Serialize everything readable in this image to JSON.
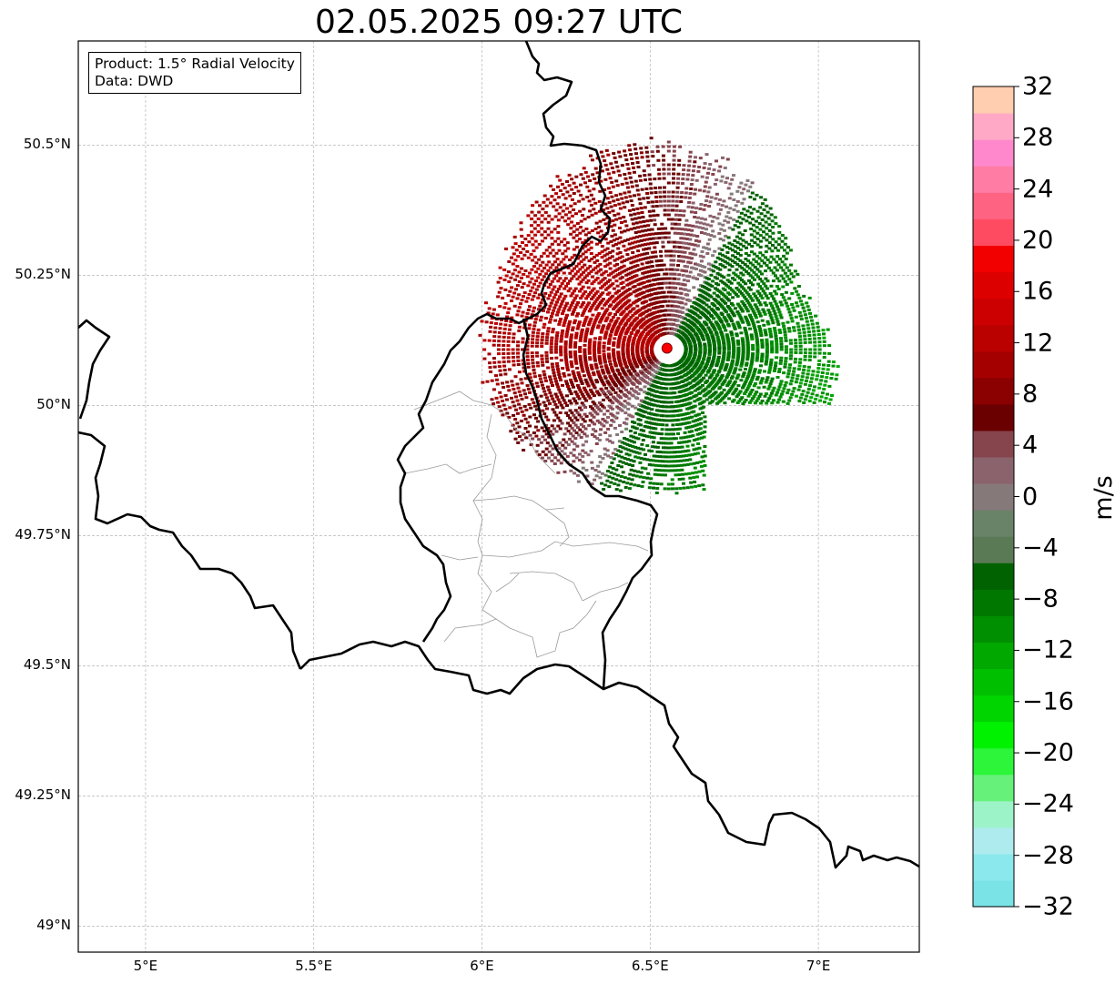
{
  "title": "02.05.2025 09:27 UTC",
  "infobox": {
    "product": "Product: 1.5° Radial Velocity",
    "source": "Data: DWD"
  },
  "map_extent": {
    "lon": [
      4.8,
      7.3
    ],
    "lat": [
      48.95,
      50.7
    ]
  },
  "radar_site": {
    "lon": 6.55,
    "lat": 50.11,
    "color": "#ff0000"
  },
  "lat_ticks": [
    {
      "value": 50.5,
      "label": "50.5°N"
    },
    {
      "value": 50.25,
      "label": "50.25°N"
    },
    {
      "value": 50.0,
      "label": "50°N"
    },
    {
      "value": 49.75,
      "label": "49.75°N"
    },
    {
      "value": 49.5,
      "label": "49.5°N"
    },
    {
      "value": 49.25,
      "label": "49.25°N"
    },
    {
      "value": 49.0,
      "label": "49°N"
    }
  ],
  "lon_ticks": [
    {
      "value": 5.0,
      "label": "5°E"
    },
    {
      "value": 5.5,
      "label": "5.5°E"
    },
    {
      "value": 6.0,
      "label": "6°E"
    },
    {
      "value": 6.5,
      "label": "6.5°E"
    },
    {
      "value": 7.0,
      "label": "7°E"
    }
  ],
  "colorbar": {
    "unit": "m/s",
    "range": [
      -32,
      32
    ],
    "ticks": [
      "32",
      "28",
      "24",
      "20",
      "16",
      "12",
      "8",
      "4",
      "0",
      "−4",
      "−8",
      "−12",
      "−16",
      "−20",
      "−24",
      "−28",
      "−32"
    ],
    "colors_bottom_to_top": [
      "#7ae3e6",
      "#8be8ec",
      "#aeebef",
      "#9df3c8",
      "#66f27a",
      "#2cf53a",
      "#00f200",
      "#00d500",
      "#00bf00",
      "#00a800",
      "#008f00",
      "#007800",
      "#006200",
      "#5a7a55",
      "#698368",
      "#86797a",
      "#8a636d",
      "#86444d",
      "#6a0000",
      "#8b0000",
      "#a50000",
      "#bb0000",
      "#cc0000",
      "#dd0000",
      "#f20000",
      "#ff4b61",
      "#ff6382",
      "#ff7ca5",
      "#ff88cc",
      "#ffa9c6",
      "#ffcdb0"
    ]
  }
}
